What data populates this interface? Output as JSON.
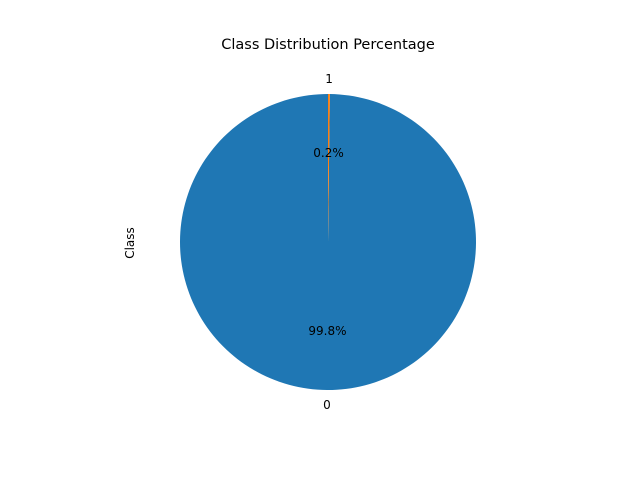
{
  "chart_data": {
    "type": "pie",
    "title": "Class Distribution Percentage",
    "ylabel": "Class",
    "categories": [
      "0",
      "1"
    ],
    "values": [
      99.8,
      0.2
    ],
    "autopct_labels": [
      "99.8%",
      "0.2%"
    ],
    "colors": [
      "#1f77b4",
      "#ff7f0e"
    ],
    "start_angle_deg": 90,
    "direction": "counterclockwise"
  }
}
